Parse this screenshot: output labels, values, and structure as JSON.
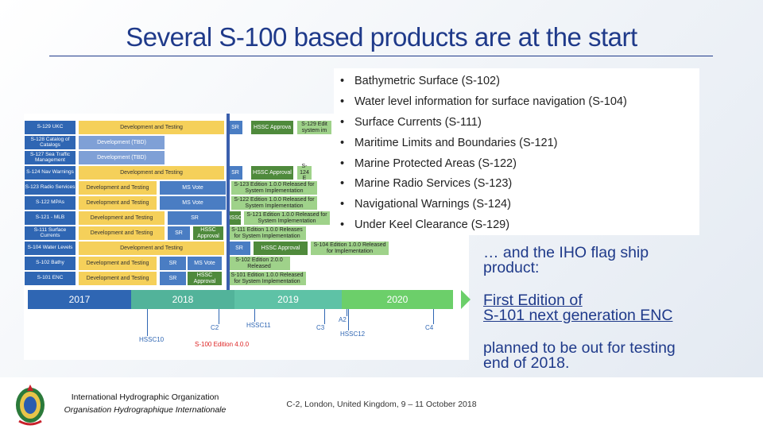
{
  "title": "Several S-100 based products are at the start",
  "bullets": [
    "Bathymetric Surface (S-102)",
    "Water level information for surface navigation (S-104)",
    "Surface Currents (S-111)",
    "Maritime Limits and Boundaries (S-121)",
    "Marine Protected Areas (S-122)",
    "Marine Radio Services (S-123)",
    "Navigational Warnings (S-124)",
    "Under Keel Clearance (S-129)"
  ],
  "bullet_char": "•",
  "side": {
    "flagship_1": "… and the IHO flag ship",
    "flagship_2": "product:",
    "edition_1": "First Edition of",
    "edition_2": "S-101 next generation ENC",
    "planned_1": "planned to be out for testing",
    "planned_2": "end of 2018."
  },
  "timeline": {
    "rows": [
      {
        "label": "S-129 UKC",
        "dev": "Development and Testing",
        "sr": "SR",
        "hssc": "HSSC Approva",
        "rel": "S-129 Edit system im"
      },
      {
        "label": "S-128 Catalog of Catalogs",
        "dev": "Development (TBD)"
      },
      {
        "label": "S-127 Sea Traffic Management",
        "dev": "Development (TBD)"
      },
      {
        "label": "S-124 Nav Warnings",
        "dev": "Development and Testing",
        "sr": "SR",
        "hssc": "HSSC Approval",
        "rel": "S-124 E"
      },
      {
        "label": "S-123 Radio Services",
        "dev": "Development and Testing",
        "ms": "MS Vote",
        "rel": "S-123 Edition 1.0.0 Released for System Implementation"
      },
      {
        "label": "S-122 MPAs",
        "dev": "Development and Testing",
        "ms": "MS Vote",
        "rel": "S-122 Edition 1.0.0 Released for System Implementation"
      },
      {
        "label": "S-121 - MLB",
        "dev": "Development and Testing",
        "sr": "SR",
        "hssc": "HSSC",
        "rel": "S-121 Edition 1.0.0 Released for System Implementation"
      },
      {
        "label": "S-111 Surface Currents",
        "dev": "Development and Testing",
        "sr": "SR",
        "hssc": "HSSC Approval",
        "rel": "S-111 Edition 1.0.0 Releases for System Implementation"
      },
      {
        "label": "S-104 Water Levels",
        "dev": "Development and Testing",
        "sr": "SR",
        "hssc": "HSSC Approval",
        "rel": "S-104 Edition 1.0.0 Released for Implementation"
      },
      {
        "label": "S-102 Bathy",
        "dev": "Development and Testing",
        "sr": "SR",
        "ms": "MS Vote",
        "rel": "S-102 Edition 2.0.0 Released"
      },
      {
        "label": "S-101 ENC",
        "dev": "Development and Testing",
        "sr": "SR",
        "hssc": "HSSC Approval",
        "rel": "S-101 Edition 1.0.0 Released for System Implementation"
      }
    ],
    "years": [
      "2017",
      "2018",
      "2019",
      "2020"
    ],
    "milestones": [
      "HSSC10",
      "C2",
      "HSSC11",
      "C3",
      "A2",
      "HSSC12",
      "C4"
    ],
    "edition_note": "S-100 Edition 4.0.0"
  },
  "footer": {
    "org_en": "International Hydrographic Organization",
    "org_fr": "Organisation Hydrographique Internationale",
    "meeting": "C-2, London, United Kingdom, 9 – 11 October 2018"
  },
  "colors": {
    "title": "#1f3a8a",
    "accent": "#2f66b3"
  }
}
